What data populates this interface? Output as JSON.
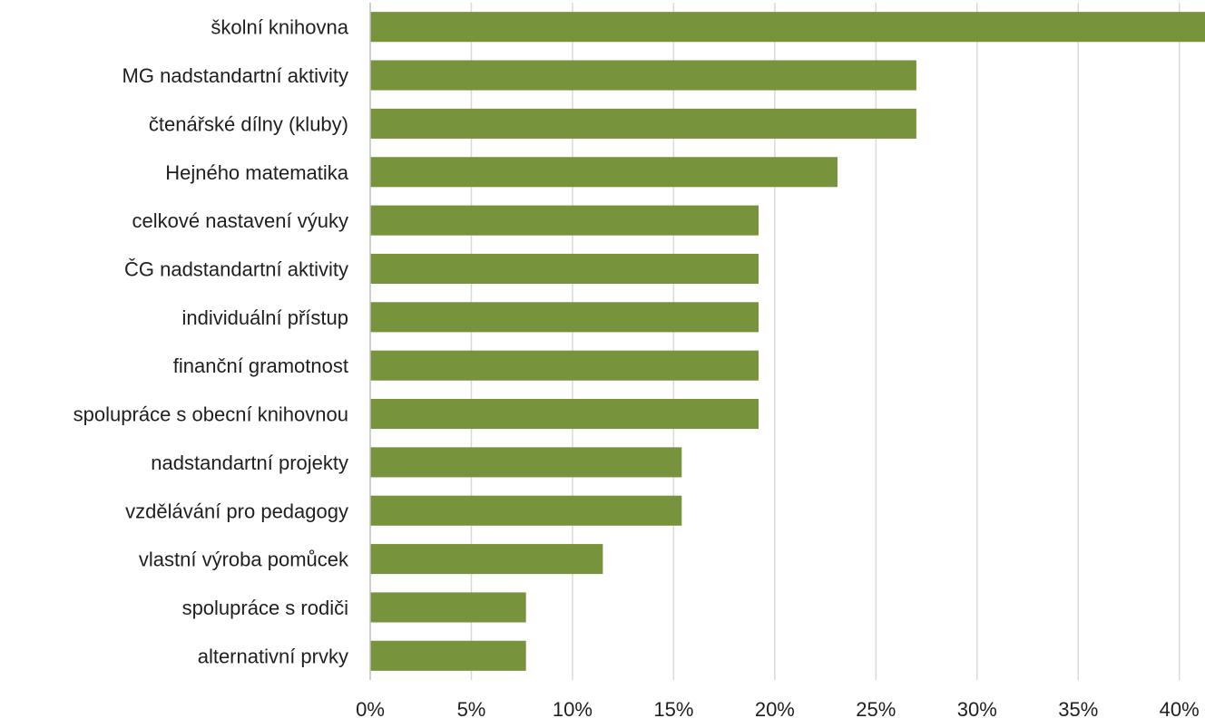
{
  "chart_data": {
    "type": "bar",
    "orientation": "horizontal",
    "title": "",
    "xlabel": "",
    "ylabel": "",
    "xlim": [
      0,
      0.41
    ],
    "x_ticks": [
      0,
      0.05,
      0.1,
      0.15,
      0.2,
      0.25,
      0.3,
      0.35,
      0.4
    ],
    "x_tick_labels": [
      "0%",
      "5%",
      "10%",
      "15%",
      "20%",
      "25%",
      "30%",
      "35%",
      "40%"
    ],
    "grid": "vertical",
    "bar_color": "#77933c",
    "categories": [
      "školní knihovna",
      "MG nadstandartní aktivity",
      "čtenářské dílny (kluby)",
      "Hejného matematika",
      "celkové nastavení výuky",
      "ČG nadstandartní aktivity",
      "individuální přístup",
      "finanční gramotnost",
      "spolupráce s obecní knihovnou",
      "nadstandartní projekty",
      "vzdělávání pro pedagogy",
      "vlastní výroba pomůcek",
      "spolupráce s rodiči",
      "alternativní prvky"
    ],
    "values": [
      0.415,
      0.27,
      0.27,
      0.231,
      0.192,
      0.192,
      0.192,
      0.192,
      0.192,
      0.154,
      0.154,
      0.115,
      0.077,
      0.077
    ]
  }
}
